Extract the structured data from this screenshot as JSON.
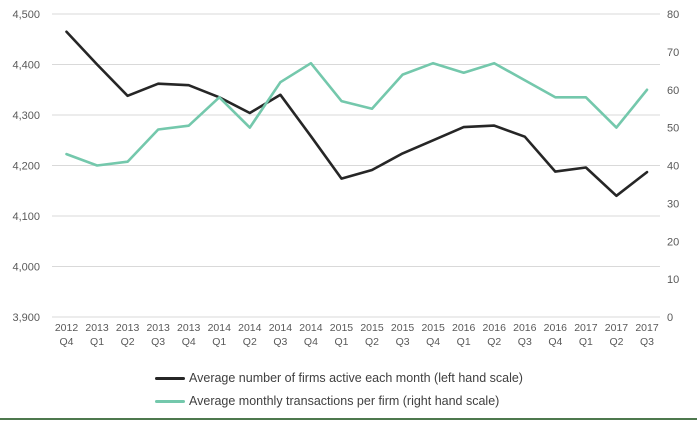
{
  "chart_data": {
    "type": "line",
    "title": "",
    "categories": [
      "2012 Q4",
      "2013 Q1",
      "2013 Q2",
      "2013 Q3",
      "2013 Q4",
      "2014 Q1",
      "2014 Q2",
      "2014 Q3",
      "2014 Q4",
      "2015 Q1",
      "2015 Q2",
      "2015 Q3",
      "2015 Q4",
      "2016 Q1",
      "2016 Q2",
      "2016 Q3",
      "2016 Q4",
      "2017 Q1",
      "2017 Q2",
      "2017 Q3"
    ],
    "series": [
      {
        "name": "Average number of firms active each month (left hand scale)",
        "axis": "left",
        "color": "#262626",
        "values": [
          4465,
          4400,
          4338,
          4362,
          4359,
          4335,
          4304,
          4340,
          4258,
          4174,
          4191,
          4224,
          4250,
          4276,
          4279,
          4257,
          4188,
          4196,
          4140,
          4187
        ]
      },
      {
        "name": "Average monthly transactions per firm (right hand scale)",
        "axis": "right",
        "color": "#74c8ac",
        "values": [
          43,
          40,
          41,
          49.5,
          50.5,
          58,
          50,
          62,
          67,
          57,
          55,
          64,
          67,
          64.5,
          67,
          62.5,
          58,
          58,
          50,
          60
        ]
      }
    ],
    "left_axis": {
      "min": 3900,
      "max": 4500,
      "step": 100,
      "tick_labels": [
        "4,500",
        "4,400",
        "4,300",
        "4,200",
        "4,100",
        "4,000",
        "3,900"
      ]
    },
    "right_axis": {
      "min": 0,
      "max": 80,
      "step": 10,
      "tick_labels": [
        "80",
        "70",
        "60",
        "50",
        "40",
        "30",
        "20",
        "10",
        "0"
      ]
    },
    "grid": true,
    "legend_position": "bottom-left"
  },
  "styles": {
    "background": "#ffffff",
    "gridline_color": "#d9d9d9",
    "axis_text_color": "#595959",
    "legend_text_color": "#404040",
    "accent_border_color": "#4e784e"
  }
}
